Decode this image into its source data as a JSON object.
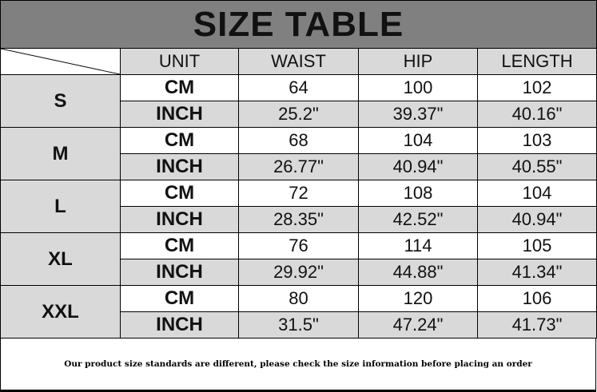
{
  "title": "SIZE TABLE",
  "headers": [
    "UNIT",
    "WAIST",
    "HIP",
    "LENGTH"
  ],
  "rows": [
    {
      "size": "S",
      "cm": {
        "unit": "CM",
        "values": [
          "64",
          "100",
          "102"
        ]
      },
      "inch": {
        "unit": "INCH",
        "values": [
          "25.2\"",
          "39.37\"",
          "40.16\""
        ]
      }
    },
    {
      "size": "M",
      "cm": {
        "unit": "CM",
        "values": [
          "68",
          "104",
          "103"
        ]
      },
      "inch": {
        "unit": "INCH",
        "values": [
          "26.77\"",
          "40.94\"",
          "40.55\""
        ]
      }
    },
    {
      "size": "L",
      "cm": {
        "unit": "CM",
        "values": [
          "72",
          "108",
          "104"
        ]
      },
      "inch": {
        "unit": "INCH",
        "values": [
          "28.35\"",
          "42.52\"",
          "40.94\""
        ]
      }
    },
    {
      "size": "XL",
      "cm": {
        "unit": "CM",
        "values": [
          "76",
          "114",
          "105"
        ]
      },
      "inch": {
        "unit": "INCH",
        "values": [
          "29.92\"",
          "44.88\"",
          "41.34\""
        ]
      }
    },
    {
      "size": "XXL",
      "cm": {
        "unit": "CM",
        "values": [
          "80",
          "120",
          "106"
        ]
      },
      "inch": {
        "unit": "INCH",
        "values": [
          "31.5\"",
          "47.24\"",
          "41.73\""
        ]
      }
    }
  ],
  "footer_note": "Our product size standards are different, please check the size information before placing an order",
  "colors": {
    "title_bg": "#808080",
    "cell_gray": "#d9d9d9",
    "cell_white": "#ffffff"
  }
}
